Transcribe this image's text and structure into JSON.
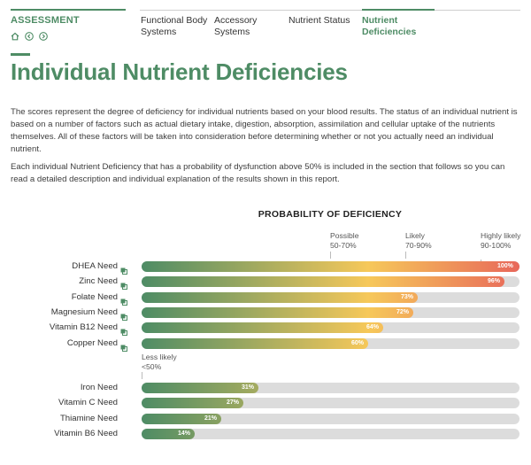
{
  "header": {
    "brand": "ASSESSMENT",
    "tabs": [
      {
        "label": "Functional Body Systems"
      },
      {
        "label": "Accessory Systems"
      },
      {
        "label": "Nutrient Status"
      },
      {
        "label": "Nutrient Deficiencies",
        "active": true
      }
    ],
    "nav_icons": [
      "home-icon",
      "back-icon",
      "forward-icon"
    ]
  },
  "page": {
    "title": "Individual Nutrient Deficiencies",
    "intro": "The scores represent the degree of deficiency for individual nutrients based on your blood results. The status of an individual nutrient is based on a number of factors such as actual dietary intake, digestion, absorption, assimilation and cellular uptake of the nutrients themselves. All of these factors will be taken into consideration before determining whether or not you actually need an individual nutrient.",
    "followup": "Each individual Nutrient Deficiency that has a probability of dysfunction above 50% is included in the section that follows so you can read a detailed description and individual explanation of the results shown in this report."
  },
  "chart_data": {
    "type": "bar",
    "orientation": "horizontal",
    "title": "PROBABILITY OF DEFICIENCY",
    "xlim": [
      0,
      100
    ],
    "bands": [
      {
        "label": "Possible",
        "range": "50-70%"
      },
      {
        "label": "Likely",
        "range": "70-90%"
      },
      {
        "label": "Highly likely",
        "range": "90-100%"
      },
      {
        "label": "Less likely",
        "range": "<50%"
      }
    ],
    "group_above_50": [
      {
        "name": "DHEA Need",
        "value": 100,
        "label": "100%"
      },
      {
        "name": "Zinc Need",
        "value": 96,
        "label": "96%"
      },
      {
        "name": "Folate Need",
        "value": 73,
        "label": "73%"
      },
      {
        "name": "Magnesium Need",
        "value": 72,
        "label": "72%"
      },
      {
        "name": "Vitamin B12 Need",
        "value": 64,
        "label": "64%"
      },
      {
        "name": "Copper Need",
        "value": 60,
        "label": "60%"
      }
    ],
    "group_below_50": [
      {
        "name": "Iron Need",
        "value": 31,
        "label": "31%"
      },
      {
        "name": "Vitamin C Need",
        "value": 27,
        "label": "27%"
      },
      {
        "name": "Thiamine Need",
        "value": 21,
        "label": "21%"
      },
      {
        "name": "Vitamin B6 Need",
        "value": 14,
        "label": "14%"
      }
    ],
    "colors": {
      "green": "#4e8c65",
      "yellow": "#f6c85a",
      "red": "#e8675a",
      "track": "#dcdcdc"
    },
    "info_icon": "info-icon"
  }
}
